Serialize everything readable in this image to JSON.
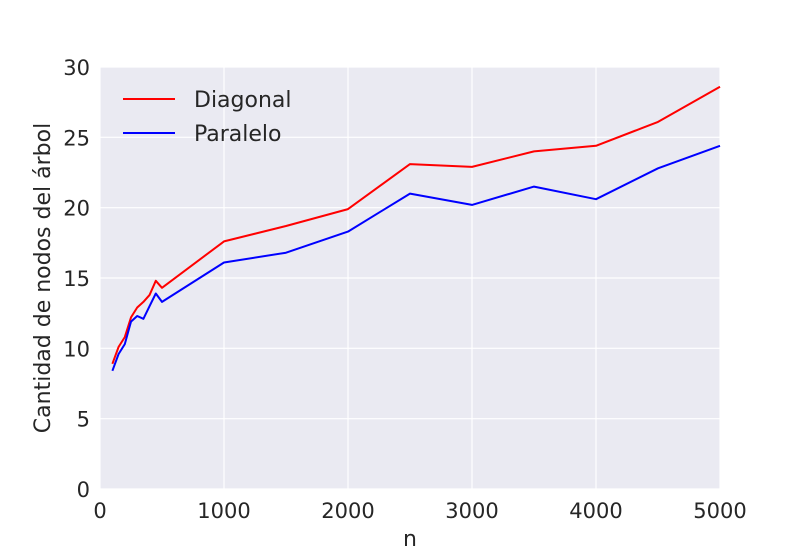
{
  "chart_data": {
    "type": "line",
    "title": "",
    "xlabel": "n",
    "ylabel": "Cantidad de nodos del árbol",
    "xlim": [
      0,
      5000
    ],
    "ylim": [
      0,
      30
    ],
    "x_ticks": [
      0,
      1000,
      2000,
      3000,
      4000,
      5000
    ],
    "x_tick_labels": [
      "0",
      "1000",
      "2000",
      "3000",
      "4000",
      "5000"
    ],
    "y_ticks": [
      0,
      5,
      10,
      15,
      20,
      25,
      30
    ],
    "y_tick_labels": [
      "0",
      "5",
      "10",
      "15",
      "20",
      "25",
      "30"
    ],
    "grid": true,
    "legend_position": "upper-left",
    "colors": {
      "background": "#eaeaf2",
      "grid": "#ffffff"
    },
    "series": [
      {
        "name": "Diagonal",
        "color": "#ff0000",
        "x": [
          100,
          150,
          200,
          250,
          300,
          350,
          400,
          450,
          500,
          1000,
          1500,
          2000,
          2500,
          3000,
          3500,
          4000,
          4500,
          5000
        ],
        "y": [
          8.9,
          10.1,
          10.8,
          12.2,
          12.9,
          13.3,
          13.8,
          14.8,
          14.3,
          17.6,
          18.7,
          19.9,
          23.1,
          22.9,
          24.0,
          24.4,
          26.1,
          28.6
        ]
      },
      {
        "name": "Paralelo",
        "color": "#0000ff",
        "x": [
          100,
          150,
          200,
          250,
          300,
          350,
          400,
          450,
          500,
          1000,
          1500,
          2000,
          2500,
          3000,
          3500,
          4000,
          4500,
          5000
        ],
        "y": [
          8.4,
          9.6,
          10.3,
          11.9,
          12.3,
          12.1,
          13.0,
          13.9,
          13.3,
          16.1,
          16.8,
          18.3,
          21.0,
          20.2,
          21.5,
          20.6,
          22.8,
          24.4
        ]
      }
    ]
  }
}
